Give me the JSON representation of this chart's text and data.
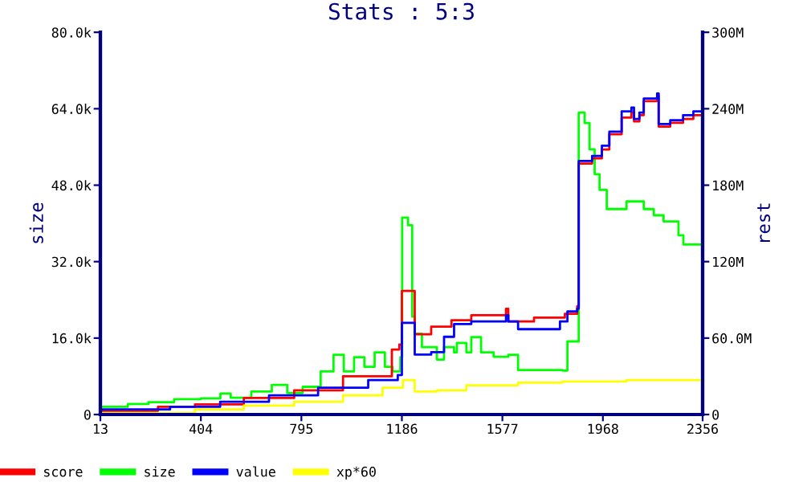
{
  "chart_data": {
    "type": "step",
    "title": "Stats : 5:3",
    "ylabel": "size",
    "y2label": "rest",
    "xlim": [
      13,
      2356
    ],
    "xticks": [
      13,
      404,
      795,
      1186,
      1577,
      1968,
      2356
    ],
    "ylim": [
      0,
      80
    ],
    "yticks": [
      0,
      {
        "value": 16,
        "label": "16.0k"
      },
      {
        "value": 32,
        "label": "32.0k"
      },
      {
        "value": 48,
        "label": "48.0k"
      },
      {
        "value": 64,
        "label": "64.0k"
      },
      {
        "value": 80,
        "label": "80.0k"
      }
    ],
    "y2lim": [
      0,
      300
    ],
    "y2ticks": [
      0,
      {
        "value": 60,
        "label": "60.0M"
      },
      {
        "value": 120,
        "label": "120M"
      },
      {
        "value": 180,
        "label": "180M"
      },
      {
        "value": 240,
        "label": "240M"
      },
      {
        "value": 300,
        "label": "300M"
      }
    ],
    "grid": false,
    "legend": "bottom left",
    "marker": "none",
    "line_style": "solid",
    "series": [
      {
        "name": "score",
        "color": "#ff0000",
        "axis": "y2",
        "x": [
          13,
          237,
          381,
          571,
          767,
          957,
          1147,
          1176,
          1186,
          1226,
          1236,
          1300,
          1379,
          1456,
          1591,
          1600,
          1700,
          1820,
          1868,
          1874,
          1926,
          1964,
          1993,
          2041,
          2079,
          2089,
          2110,
          2127,
          2179,
          2185,
          2230,
          2280,
          2320,
          2356
        ],
        "values": [
          3,
          6,
          8,
          13,
          19,
          30,
          51,
          55,
          97,
          97,
          63,
          69,
          74,
          78,
          83,
          73,
          76,
          79,
          85,
          197,
          201,
          208,
          220,
          233,
          237,
          230,
          235,
          246,
          250,
          226,
          229,
          232,
          235,
          239
        ]
      },
      {
        "name": "size",
        "color": "#00ff00",
        "axis": "y",
        "x": [
          13,
          120,
          200,
          300,
          404,
          480,
          520,
          600,
          680,
          740,
          800,
          870,
          920,
          960,
          1000,
          1040,
          1080,
          1120,
          1150,
          1180,
          1187,
          1210,
          1226,
          1236,
          1264,
          1322,
          1350,
          1389,
          1400,
          1437,
          1456,
          1494,
          1543,
          1600,
          1638,
          1811,
          1830,
          1868,
          1874,
          1897,
          1916,
          1936,
          1955,
          1983,
          2060,
          2127,
          2166,
          2204,
          2262,
          2281,
          2356
        ],
        "values": [
          1.6,
          2.2,
          2.6,
          3.2,
          3.4,
          4.4,
          3.5,
          4.8,
          6.2,
          4.5,
          5.8,
          9,
          12.5,
          9,
          12,
          10,
          13,
          10,
          9,
          12,
          41.2,
          39.6,
          20.5,
          16.9,
          14.1,
          11.5,
          14.1,
          13,
          15,
          13,
          16.2,
          13,
          12.1,
          12.5,
          9.3,
          9.2,
          15.3,
          15.3,
          63.2,
          61,
          55.5,
          50.3,
          47,
          43,
          44.6,
          43,
          41.7,
          40.4,
          37.5,
          35.6,
          35.6
        ]
      },
      {
        "name": "value",
        "color": "#0000ff",
        "axis": "y2",
        "x": [
          13,
          284,
          479,
          669,
          860,
          1055,
          1170,
          1186,
          1226,
          1236,
          1300,
          1350,
          1389,
          1456,
          1591,
          1600,
          1638,
          1801,
          1830,
          1868,
          1874,
          1926,
          1964,
          1993,
          2041,
          2079,
          2089,
          2110,
          2127,
          2179,
          2185,
          2230,
          2280,
          2320,
          2356
        ],
        "values": [
          4,
          6,
          10,
          15,
          21,
          27,
          31,
          72,
          72,
          47,
          49,
          61,
          71,
          73,
          78,
          73,
          67,
          73,
          81,
          83,
          199,
          203,
          211,
          222,
          238,
          241,
          232,
          237,
          248,
          252,
          228,
          231,
          235,
          238,
          242
        ]
      },
      {
        "name": "xp*60",
        "color": "#ffff00",
        "axis": "y2",
        "x": [
          13,
          381,
          571,
          767,
          957,
          1111,
          1190,
          1224,
          1236,
          1322,
          1437,
          1638,
          1811,
          2060,
          2356
        ],
        "values": [
          1,
          4,
          7,
          10,
          15,
          21,
          27,
          27,
          18,
          19,
          23,
          25,
          26,
          27,
          27
        ]
      }
    ]
  }
}
